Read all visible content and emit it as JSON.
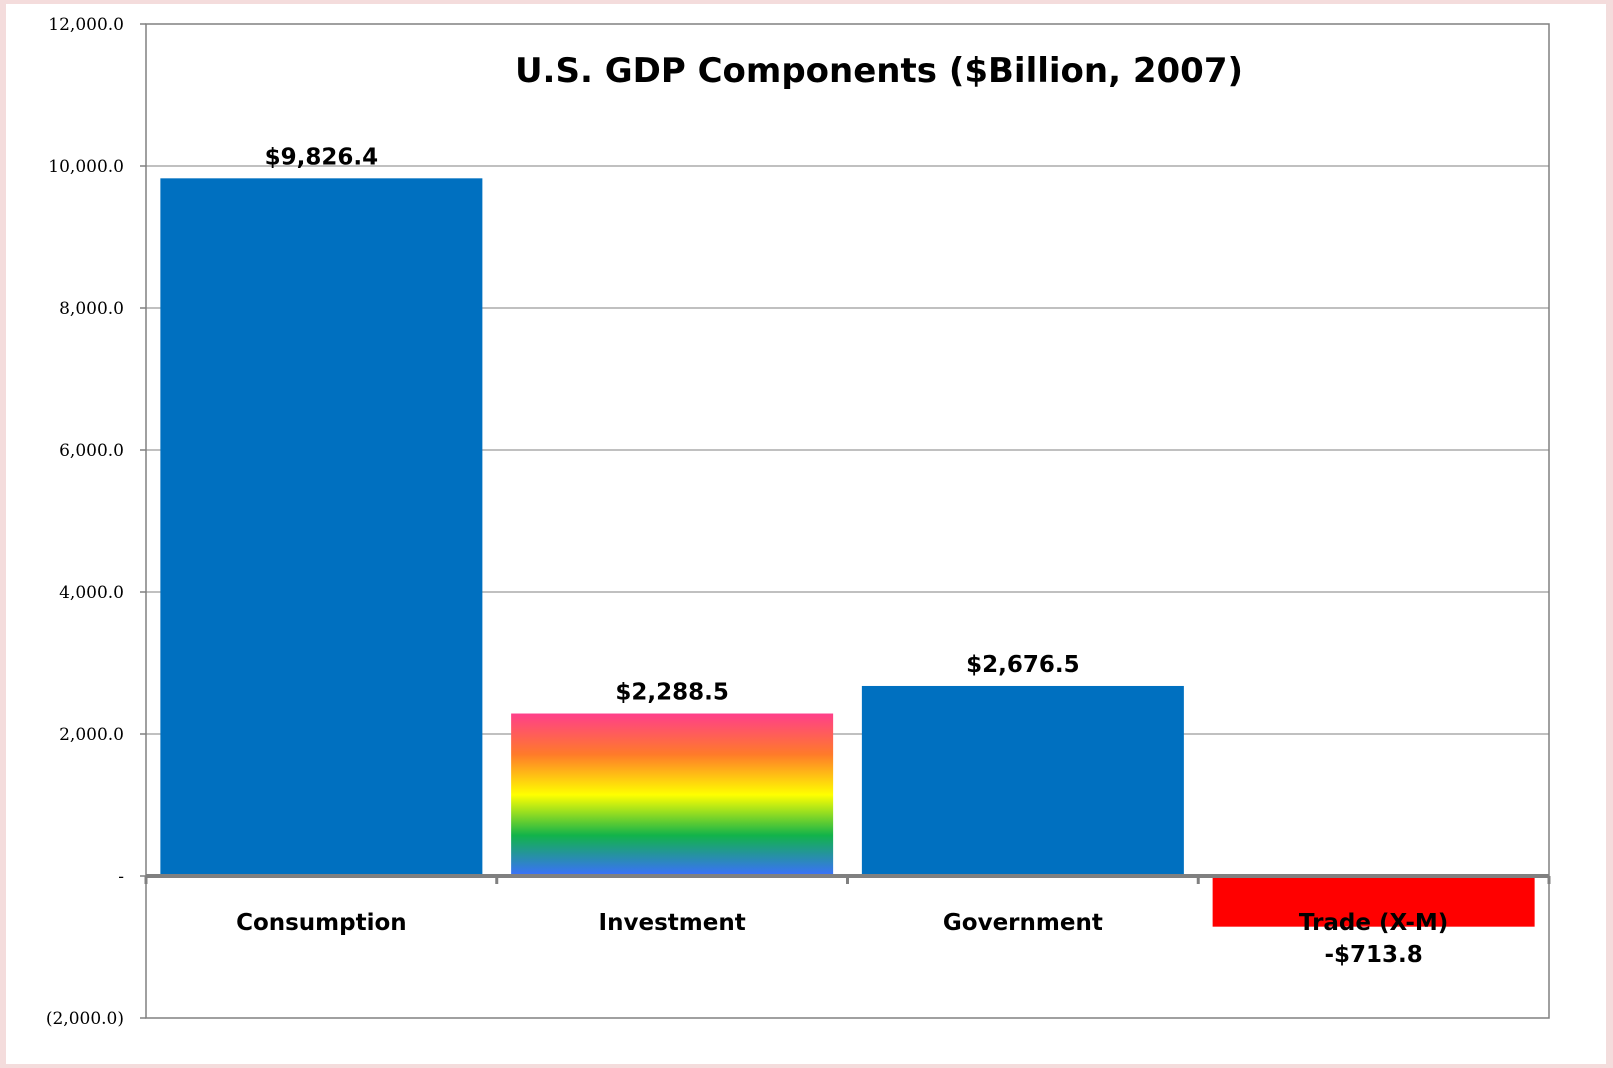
{
  "chart_data": {
    "type": "bar",
    "title": "U.S. GDP Components ($Billion, 2007)",
    "xlabel": "",
    "ylabel": "",
    "categories": [
      "Consumption",
      "Investment",
      "Government",
      "Trade (X-M)"
    ],
    "values": [
      9826.4,
      2288.5,
      2676.5,
      -713.8
    ],
    "data_labels": [
      "$9,826.4",
      "$2,288.5",
      "$2,676.5",
      "-$713.8"
    ],
    "ylim": [
      -2000,
      12000
    ],
    "yticks": [
      12000,
      10000,
      8000,
      6000,
      4000,
      2000,
      0,
      -2000
    ],
    "ytick_labels": [
      "12,000.0",
      "10,000.0",
      "8,000.0",
      "6,000.0",
      "4,000.0",
      "2,000.0",
      "-",
      "(2,000.0)"
    ],
    "grid": true,
    "legend": "none",
    "bar_colors": [
      "#0070c0",
      "rainbow-gradient",
      "#0070c0",
      "#ff0000"
    ],
    "gradient_stops": [
      "#ff3f8a",
      "#ff7a2a",
      "#ffff00",
      "#12b34a",
      "#3b6fff"
    ],
    "gridline_color": "#808080",
    "axis_color": "#808080"
  }
}
